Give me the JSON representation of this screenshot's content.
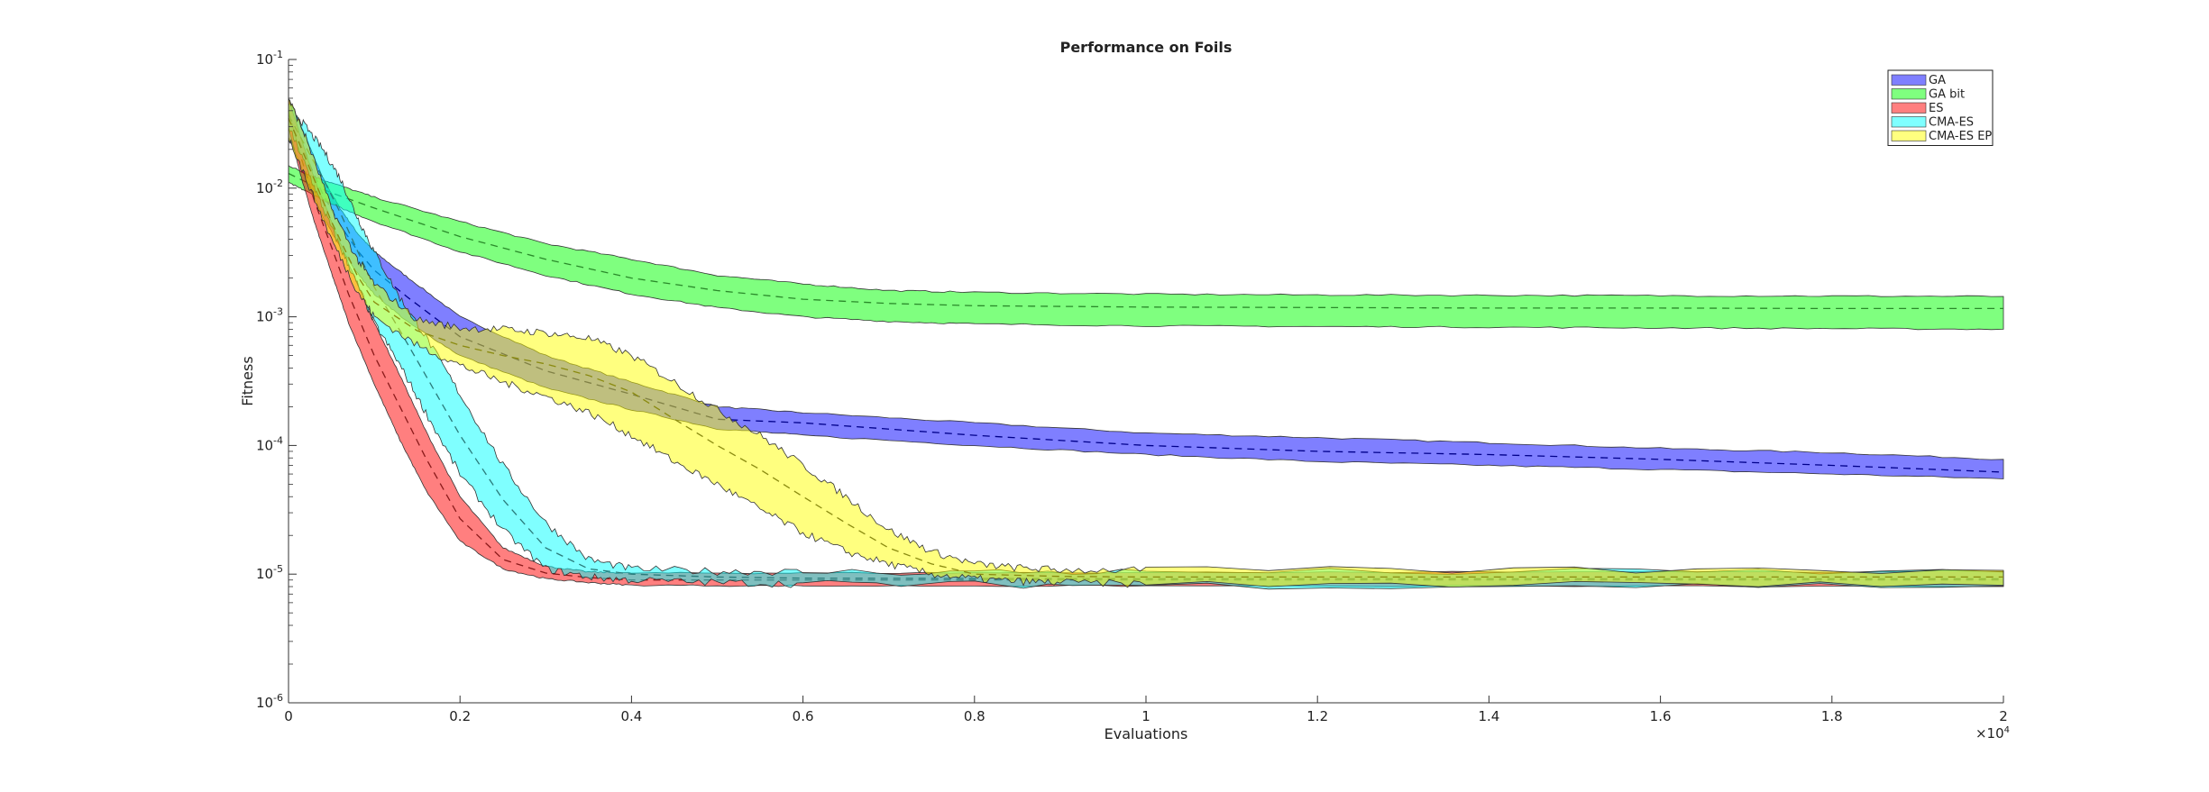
{
  "chart_data": {
    "type": "area",
    "title": "Performance on Foils",
    "xlabel": "Evaluations",
    "ylabel": "Fitness",
    "x_multiplier_label": "×10^4",
    "x_ticks": [
      "0",
      "0.2",
      "0.4",
      "0.6",
      "0.8",
      "1",
      "1.2",
      "1.4",
      "1.6",
      "1.8",
      "2"
    ],
    "x_tick_values": [
      0,
      2000,
      4000,
      6000,
      8000,
      10000,
      12000,
      14000,
      16000,
      18000,
      20000
    ],
    "y_ticks": [
      {
        "base": "10",
        "exp": "-1",
        "value": 0.1
      },
      {
        "base": "10",
        "exp": "-2",
        "value": 0.01
      },
      {
        "base": "10",
        "exp": "-3",
        "value": 0.001
      },
      {
        "base": "10",
        "exp": "-4",
        "value": 0.0001
      },
      {
        "base": "10",
        "exp": "-5",
        "value": 1e-05
      },
      {
        "base": "10",
        "exp": "-6",
        "value": 1e-06
      }
    ],
    "xlim": [
      0,
      20000
    ],
    "ylim": [
      1e-06,
      0.1
    ],
    "y_scale": "log",
    "grid": false,
    "legend_position": "top-right",
    "series": [
      {
        "name": "GA",
        "color": "#0000ff",
        "x": [
          0,
          200,
          400,
          600,
          800,
          1000,
          1400,
          2000,
          3000,
          4000,
          5000,
          6000,
          8000,
          10000,
          12000,
          14000,
          16000,
          18000,
          20000
        ],
        "lower": [
          0.025,
          0.012,
          0.006,
          0.0035,
          0.0022,
          0.0015,
          0.0009,
          0.0005,
          0.00028,
          0.00019,
          0.000135,
          0.00012,
          0.0001,
          8.5e-05,
          7.5e-05,
          7e-05,
          6.5e-05,
          6e-05,
          5.5e-05
        ],
        "upper": [
          0.05,
          0.025,
          0.012,
          0.007,
          0.0045,
          0.0032,
          0.002,
          0.001,
          0.0005,
          0.00031,
          0.0002,
          0.00018,
          0.00015,
          0.000125,
          0.000115,
          0.000105,
          9.5e-05,
          8.8e-05,
          7.8e-05
        ],
        "mean": [
          0.035,
          0.018,
          0.009,
          0.0052,
          0.0033,
          0.0023,
          0.0014,
          0.0007,
          0.00038,
          0.00025,
          0.00016,
          0.00015,
          0.00012,
          0.0001,
          9e-05,
          8.5e-05,
          7.8e-05,
          7e-05,
          6.2e-05
        ]
      },
      {
        "name": "GA bit",
        "color": "#00ff00",
        "x": [
          0,
          200,
          500,
          1000,
          2000,
          3000,
          4000,
          5000,
          6000,
          7000,
          8000,
          10000,
          12000,
          14000,
          16000,
          18000,
          20000
        ],
        "lower": [
          0.011,
          0.0095,
          0.0075,
          0.0055,
          0.0032,
          0.0021,
          0.0015,
          0.00118,
          0.001,
          0.00092,
          0.00088,
          0.00085,
          0.00084,
          0.00083,
          0.00082,
          0.00081,
          0.0008
        ],
        "upper": [
          0.015,
          0.013,
          0.011,
          0.0085,
          0.0055,
          0.0037,
          0.0028,
          0.0021,
          0.0018,
          0.0016,
          0.00155,
          0.0015,
          0.00148,
          0.00147,
          0.00146,
          0.00145,
          0.00144
        ],
        "mean": [
          0.013,
          0.0112,
          0.0092,
          0.007,
          0.0042,
          0.0028,
          0.002,
          0.0016,
          0.00137,
          0.00127,
          0.00122,
          0.00119,
          0.00118,
          0.00117,
          0.00117,
          0.00116,
          0.00116
        ]
      },
      {
        "name": "ES",
        "color": "#ff0000",
        "x": [
          0,
          150,
          300,
          500,
          700,
          1000,
          1300,
          1600,
          2000,
          2500,
          3000,
          3500,
          4000,
          6000,
          10000,
          20000
        ],
        "lower": [
          0.03,
          0.012,
          0.0055,
          0.0022,
          0.0009,
          0.0003,
          0.00011,
          4.5e-05,
          1.8e-05,
          1.1e-05,
          9.2e-06,
          8.6e-06,
          8.2e-06,
          8.1e-06,
          8.1e-06,
          8e-06
        ],
        "upper": [
          0.05,
          0.024,
          0.012,
          0.0055,
          0.0026,
          0.0009,
          0.00035,
          0.00013,
          4e-05,
          1.6e-05,
          1.15e-05,
          1.04e-05,
          1.02e-05,
          1.02e-05,
          1.03e-05,
          1.05e-05
        ],
        "mean": [
          0.04,
          0.017,
          0.008,
          0.0035,
          0.0015,
          0.0005,
          0.0002,
          8e-05,
          2.7e-05,
          1.3e-05,
          1.02e-05,
          9.4e-06,
          9e-06,
          9e-06,
          9e-06,
          9e-06
        ]
      },
      {
        "name": "CMA-ES",
        "color": "#00ffff",
        "x": [
          0,
          200,
          400,
          600,
          800,
          1000,
          1300,
          1600,
          2000,
          2500,
          3000,
          3500,
          4000,
          5000,
          6000,
          10000,
          20000
        ],
        "lower": [
          0.03,
          0.015,
          0.007,
          0.0035,
          0.0018,
          0.0009,
          0.00042,
          0.00018,
          6e-05,
          2.2e-05,
          1.1e-05,
          9.5e-06,
          9e-06,
          8.6e-06,
          8.4e-06,
          8.2e-06,
          8.1e-06
        ],
        "upper": [
          0.045,
          0.03,
          0.02,
          0.012,
          0.006,
          0.0032,
          0.0014,
          0.0007,
          0.00025,
          7e-05,
          2.5e-05,
          1.3e-05,
          1.1e-05,
          1.05e-05,
          1.04e-05,
          1.04e-05,
          1.04e-05
        ],
        "mean": [
          0.037,
          0.021,
          0.012,
          0.0065,
          0.0033,
          0.0017,
          0.00078,
          0.00035,
          0.00012,
          3.8e-05,
          1.6e-05,
          1.1e-05,
          1e-05,
          9.5e-06,
          9.3e-06,
          9.2e-06,
          9.2e-06
        ]
      },
      {
        "name": "CMA-ES EP",
        "color": "#ffff00",
        "x": [
          0,
          200,
          500,
          800,
          1000,
          1500,
          2000,
          2500,
          3000,
          3500,
          4000,
          4500,
          5000,
          5500,
          6000,
          6500,
          7000,
          7500,
          8000,
          8500,
          9000,
          10000,
          20000
        ],
        "lower": [
          0.025,
          0.012,
          0.004,
          0.0016,
          0.001,
          0.0006,
          0.00042,
          0.00031,
          0.00024,
          0.00018,
          0.00012,
          7.5e-05,
          5e-05,
          3.2e-05,
          2.1e-05,
          1.5e-05,
          1.2e-05,
          1e-05,
          9.2e-06,
          8.8e-06,
          8.6e-06,
          8.4e-06,
          8.2e-06
        ],
        "upper": [
          0.05,
          0.025,
          0.007,
          0.0028,
          0.0018,
          0.00095,
          0.00082,
          0.0008,
          0.00075,
          0.00068,
          0.0005,
          0.00031,
          0.00019,
          0.00012,
          7e-05,
          4e-05,
          2.2e-05,
          1.5e-05,
          1.2e-05,
          1.12e-05,
          1.08e-05,
          1.07e-05,
          1.07e-05
        ],
        "mean": [
          0.035,
          0.017,
          0.0055,
          0.0021,
          0.0013,
          0.00078,
          0.0006,
          0.0005,
          0.00043,
          0.00035,
          0.00026,
          0.00016,
          0.0001,
          6.5e-05,
          4e-05,
          2.5e-05,
          1.6e-05,
          1.2e-05,
          1e-05,
          9.8e-06,
          9.6e-06,
          9.5e-06,
          9.5e-06
        ]
      }
    ]
  }
}
